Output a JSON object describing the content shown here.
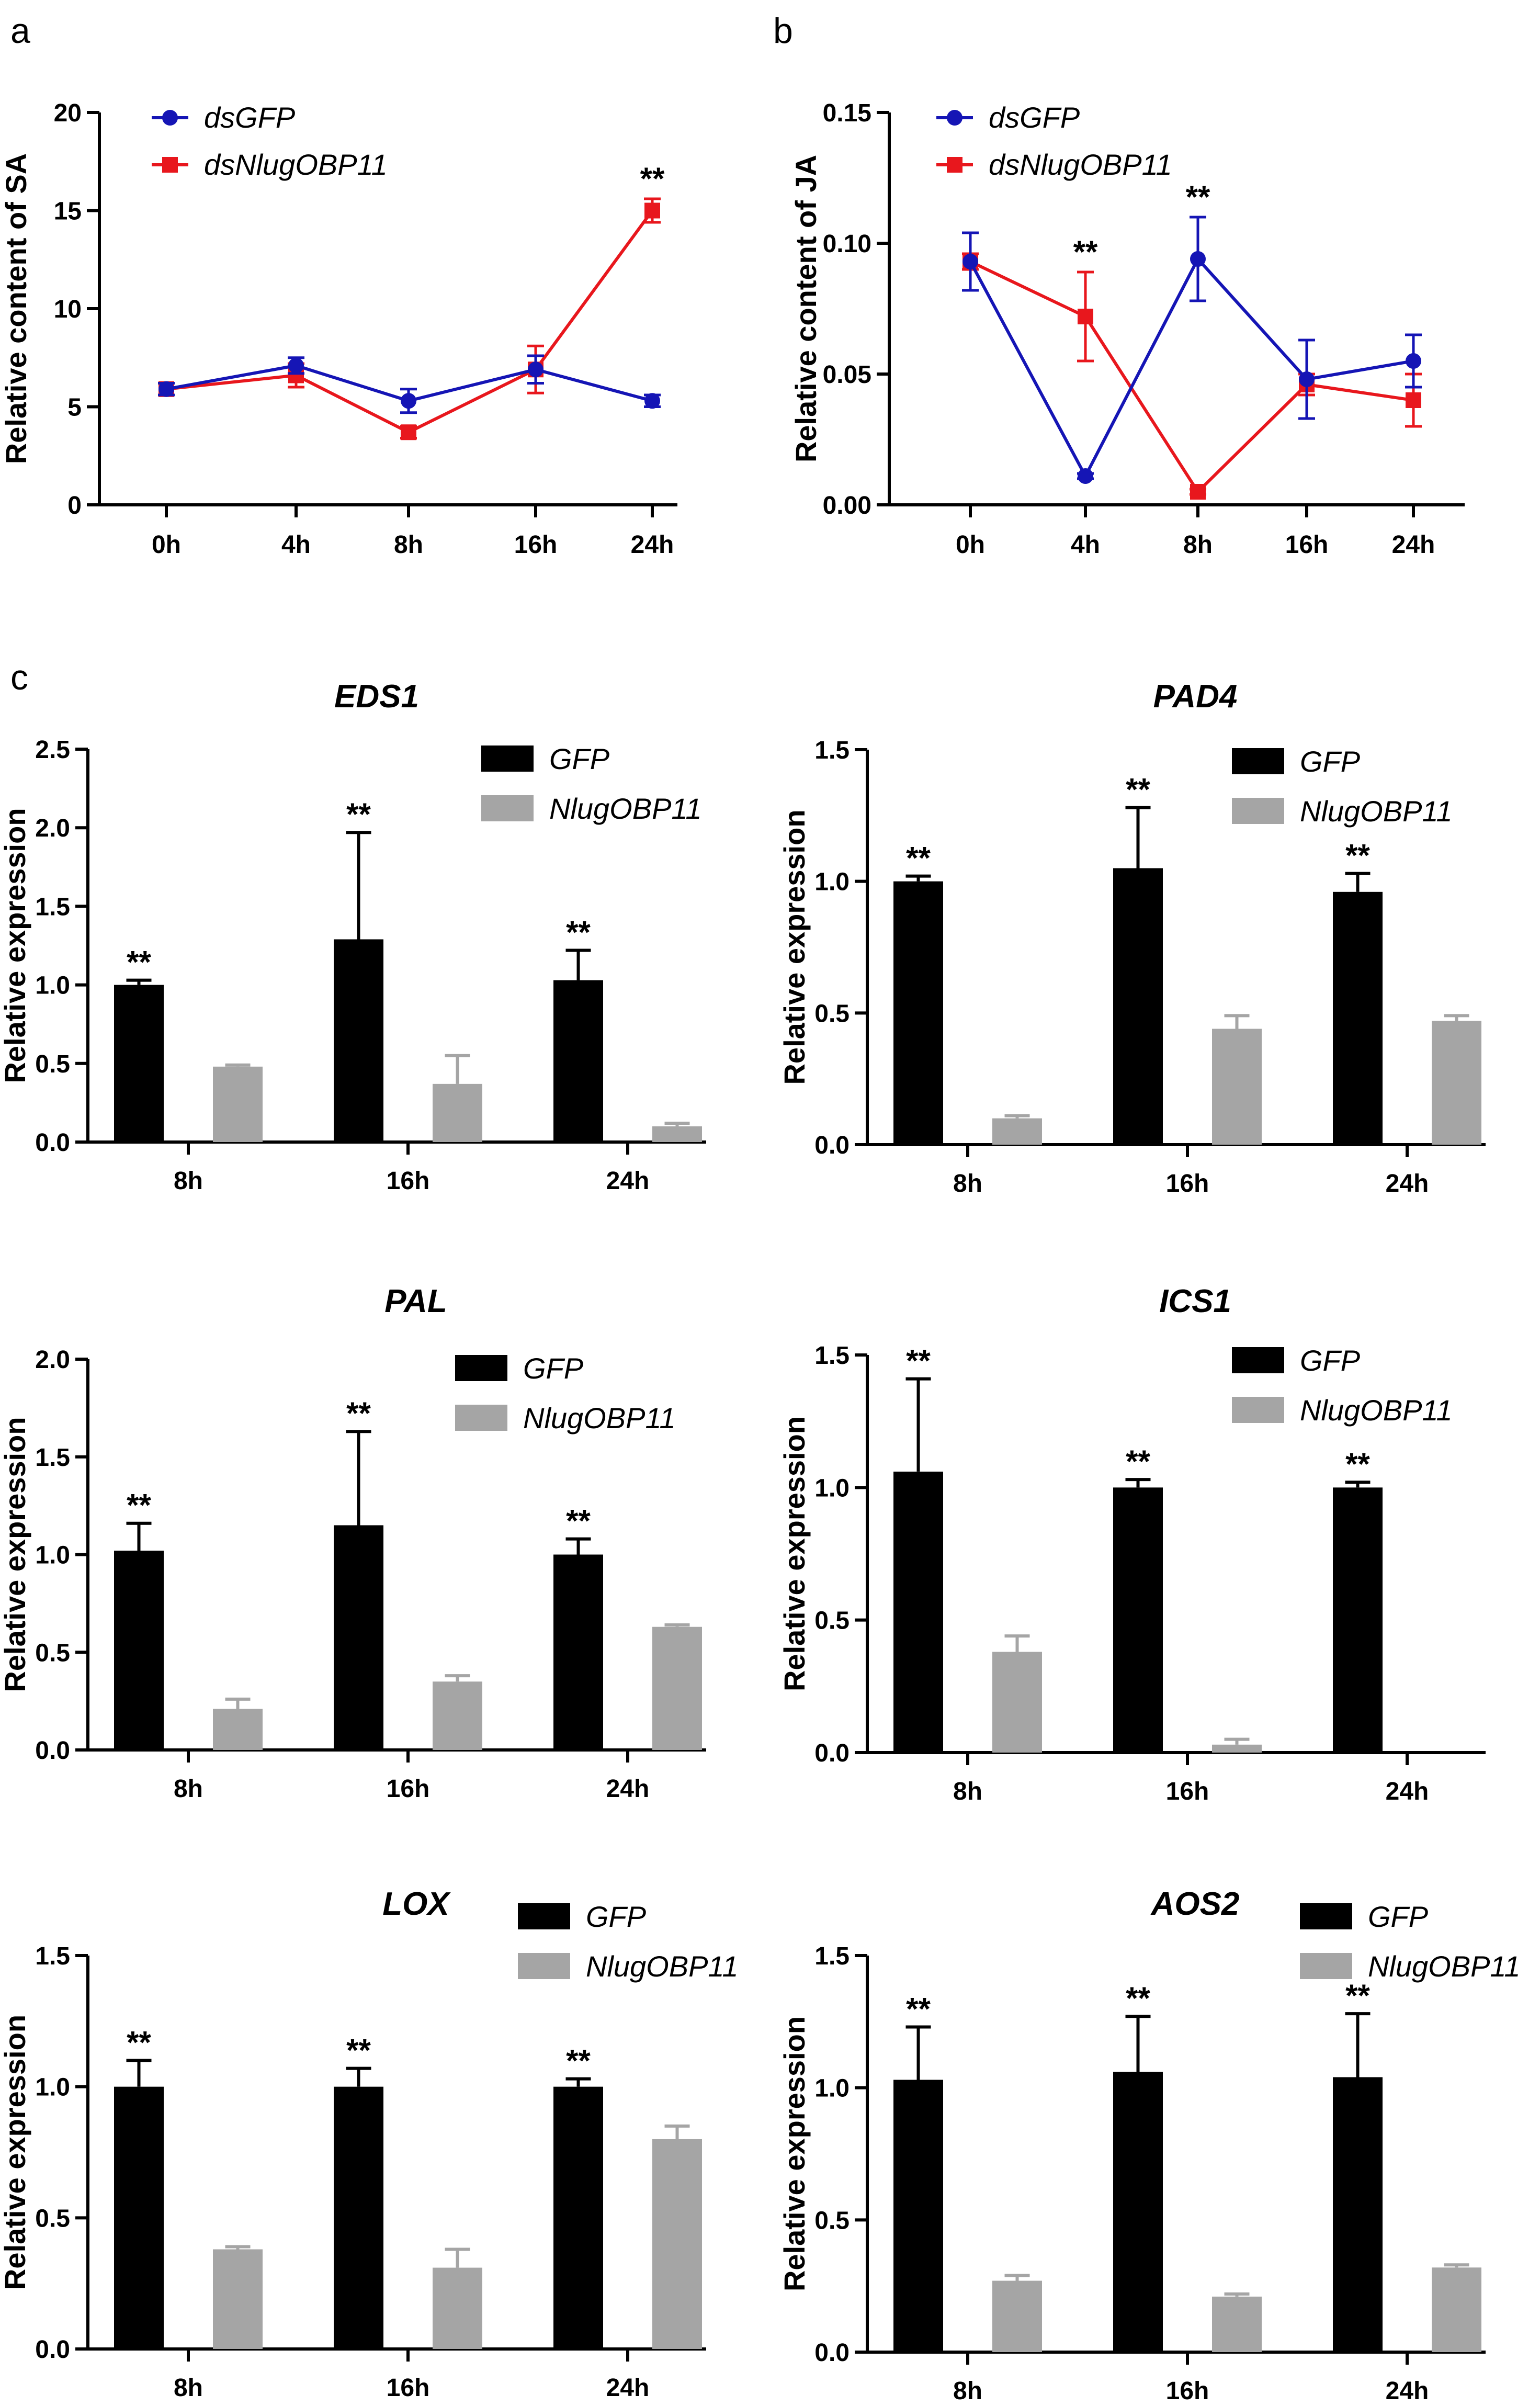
{
  "line_panels": [
    {
      "letter": "a",
      "ylabel": "Relative content of SA",
      "yticks": [
        "0",
        "5",
        "10",
        "15",
        "20"
      ],
      "categories": [
        "0h",
        "4h",
        "8h",
        "16h",
        "24h"
      ]
    },
    {
      "letter": "b",
      "ylabel": "Relative content of JA",
      "yticks": [
        "0.00",
        "0.05",
        "0.10",
        "0.15"
      ],
      "categories": [
        "0h",
        "4h",
        "8h",
        "16h",
        "24h"
      ]
    }
  ],
  "bar_panel_letter": "c",
  "colors": {
    "dsGFP": "#1515b5",
    "dsNlugOBP11": "#e8171d",
    "GFP": "#000000",
    "NlugOBP11": "#a5a5a5",
    "axis": "#000000"
  },
  "chart_data": [
    {
      "type": "line",
      "panel": "a",
      "title": "",
      "xlabel": "",
      "ylabel": "Relative content of SA",
      "ylim": [
        0,
        20
      ],
      "categories": [
        "0h",
        "4h",
        "8h",
        "16h",
        "24h"
      ],
      "series": [
        {
          "name": "dsGFP",
          "values": [
            5.9,
            7.1,
            5.3,
            6.9,
            5.3
          ],
          "errors": [
            0.3,
            0.4,
            0.6,
            0.7,
            0.3
          ]
        },
        {
          "name": "dsNlugOBP11",
          "values": [
            5.9,
            6.6,
            3.7,
            6.9,
            15.0
          ],
          "errors": [
            0.3,
            0.6,
            0.3,
            1.2,
            0.6
          ]
        }
      ],
      "annotations": [
        {
          "category": "24h",
          "text": "**"
        }
      ]
    },
    {
      "type": "line",
      "panel": "b",
      "title": "",
      "xlabel": "",
      "ylabel": "Relative content of JA",
      "ylim": [
        0,
        0.15
      ],
      "categories": [
        "0h",
        "4h",
        "8h",
        "16h",
        "24h"
      ],
      "series": [
        {
          "name": "dsGFP",
          "values": [
            0.093,
            0.011,
            0.094,
            0.048,
            0.055
          ],
          "errors": [
            0.011,
            0.001,
            0.016,
            0.015,
            0.01
          ]
        },
        {
          "name": "dsNlugOBP11",
          "values": [
            0.093,
            0.072,
            0.005,
            0.046,
            0.04
          ],
          "errors": [
            0.003,
            0.017,
            0.001,
            0.004,
            0.01
          ]
        }
      ],
      "annotations": [
        {
          "category": "4h",
          "text": "**"
        },
        {
          "category": "8h",
          "text": "**"
        }
      ]
    },
    {
      "type": "bar",
      "title": "EDS1",
      "xlabel": "",
      "ylabel": "Relative expression",
      "ylim": [
        0,
        2.5
      ],
      "yticks": [
        "0.0",
        "0.5",
        "1.0",
        "1.5",
        "2.0",
        "2.5"
      ],
      "categories": [
        "8h",
        "16h",
        "24h"
      ],
      "series": [
        {
          "name": "GFP",
          "values": [
            1.0,
            1.29,
            1.03
          ],
          "errors": [
            0.03,
            0.68,
            0.19
          ]
        },
        {
          "name": "NlugOBP11",
          "values": [
            0.48,
            0.37,
            0.1
          ],
          "errors": [
            0.01,
            0.18,
            0.02
          ]
        }
      ],
      "annotations": [
        "**",
        "**",
        "**"
      ]
    },
    {
      "type": "bar",
      "title": "PAD4",
      "xlabel": "",
      "ylabel": "Relative expression",
      "ylim": [
        0,
        1.5
      ],
      "yticks": [
        "0.0",
        "0.5",
        "1.0",
        "1.5"
      ],
      "categories": [
        "8h",
        "16h",
        "24h"
      ],
      "series": [
        {
          "name": "GFP",
          "values": [
            1.0,
            1.05,
            0.96
          ],
          "errors": [
            0.02,
            0.23,
            0.07
          ]
        },
        {
          "name": "NlugOBP11",
          "values": [
            0.1,
            0.44,
            0.47
          ],
          "errors": [
            0.01,
            0.05,
            0.02
          ]
        }
      ],
      "annotations": [
        "**",
        "**",
        "**"
      ]
    },
    {
      "type": "bar",
      "title": "PAL",
      "xlabel": "",
      "ylabel": "Relative expression",
      "ylim": [
        0,
        2.0
      ],
      "yticks": [
        "0.0",
        "0.5",
        "1.0",
        "1.5",
        "2.0"
      ],
      "categories": [
        "8h",
        "16h",
        "24h"
      ],
      "series": [
        {
          "name": "GFP",
          "values": [
            1.02,
            1.15,
            1.0
          ],
          "errors": [
            0.14,
            0.48,
            0.08
          ]
        },
        {
          "name": "NlugOBP11",
          "values": [
            0.21,
            0.35,
            0.63
          ],
          "errors": [
            0.05,
            0.03,
            0.01
          ]
        }
      ],
      "annotations": [
        "**",
        "**",
        "**"
      ]
    },
    {
      "type": "bar",
      "title": "ICS1",
      "xlabel": "",
      "ylabel": "Relative expression",
      "ylim": [
        0,
        1.5
      ],
      "yticks": [
        "0.0",
        "0.5",
        "1.0",
        "1.5"
      ],
      "categories": [
        "8h",
        "16h",
        "24h"
      ],
      "series": [
        {
          "name": "GFP",
          "values": [
            1.06,
            1.0,
            1.0
          ],
          "errors": [
            0.35,
            0.03,
            0.02
          ]
        },
        {
          "name": "NlugOBP11",
          "values": [
            0.38,
            0.03,
            0.0
          ],
          "errors": [
            0.06,
            0.02,
            0.0
          ]
        }
      ],
      "annotations": [
        "**",
        "**",
        "**"
      ]
    },
    {
      "type": "bar",
      "title": "LOX",
      "xlabel": "",
      "ylabel": "Relative expression",
      "ylim": [
        0,
        1.5
      ],
      "yticks": [
        "0.0",
        "0.5",
        "1.0",
        "1.5"
      ],
      "categories": [
        "8h",
        "16h",
        "24h"
      ],
      "series": [
        {
          "name": "GFP",
          "values": [
            1.0,
            1.0,
            1.0
          ],
          "errors": [
            0.1,
            0.07,
            0.03
          ]
        },
        {
          "name": "NlugOBP11",
          "values": [
            0.38,
            0.31,
            0.8
          ],
          "errors": [
            0.01,
            0.07,
            0.05
          ]
        }
      ],
      "annotations": [
        "**",
        "**",
        "**"
      ]
    },
    {
      "type": "bar",
      "title": "AOS2",
      "xlabel": "",
      "ylabel": "Relative expression",
      "ylim": [
        0,
        1.5
      ],
      "yticks": [
        "0.0",
        "0.5",
        "1.0",
        "1.5"
      ],
      "categories": [
        "8h",
        "16h",
        "24h"
      ],
      "series": [
        {
          "name": "GFP",
          "values": [
            1.03,
            1.06,
            1.04
          ],
          "errors": [
            0.2,
            0.21,
            0.24
          ]
        },
        {
          "name": "NlugOBP11",
          "values": [
            0.27,
            0.21,
            0.32
          ],
          "errors": [
            0.02,
            0.01,
            0.01
          ]
        }
      ],
      "annotations": [
        "**",
        "**",
        "**"
      ]
    }
  ]
}
